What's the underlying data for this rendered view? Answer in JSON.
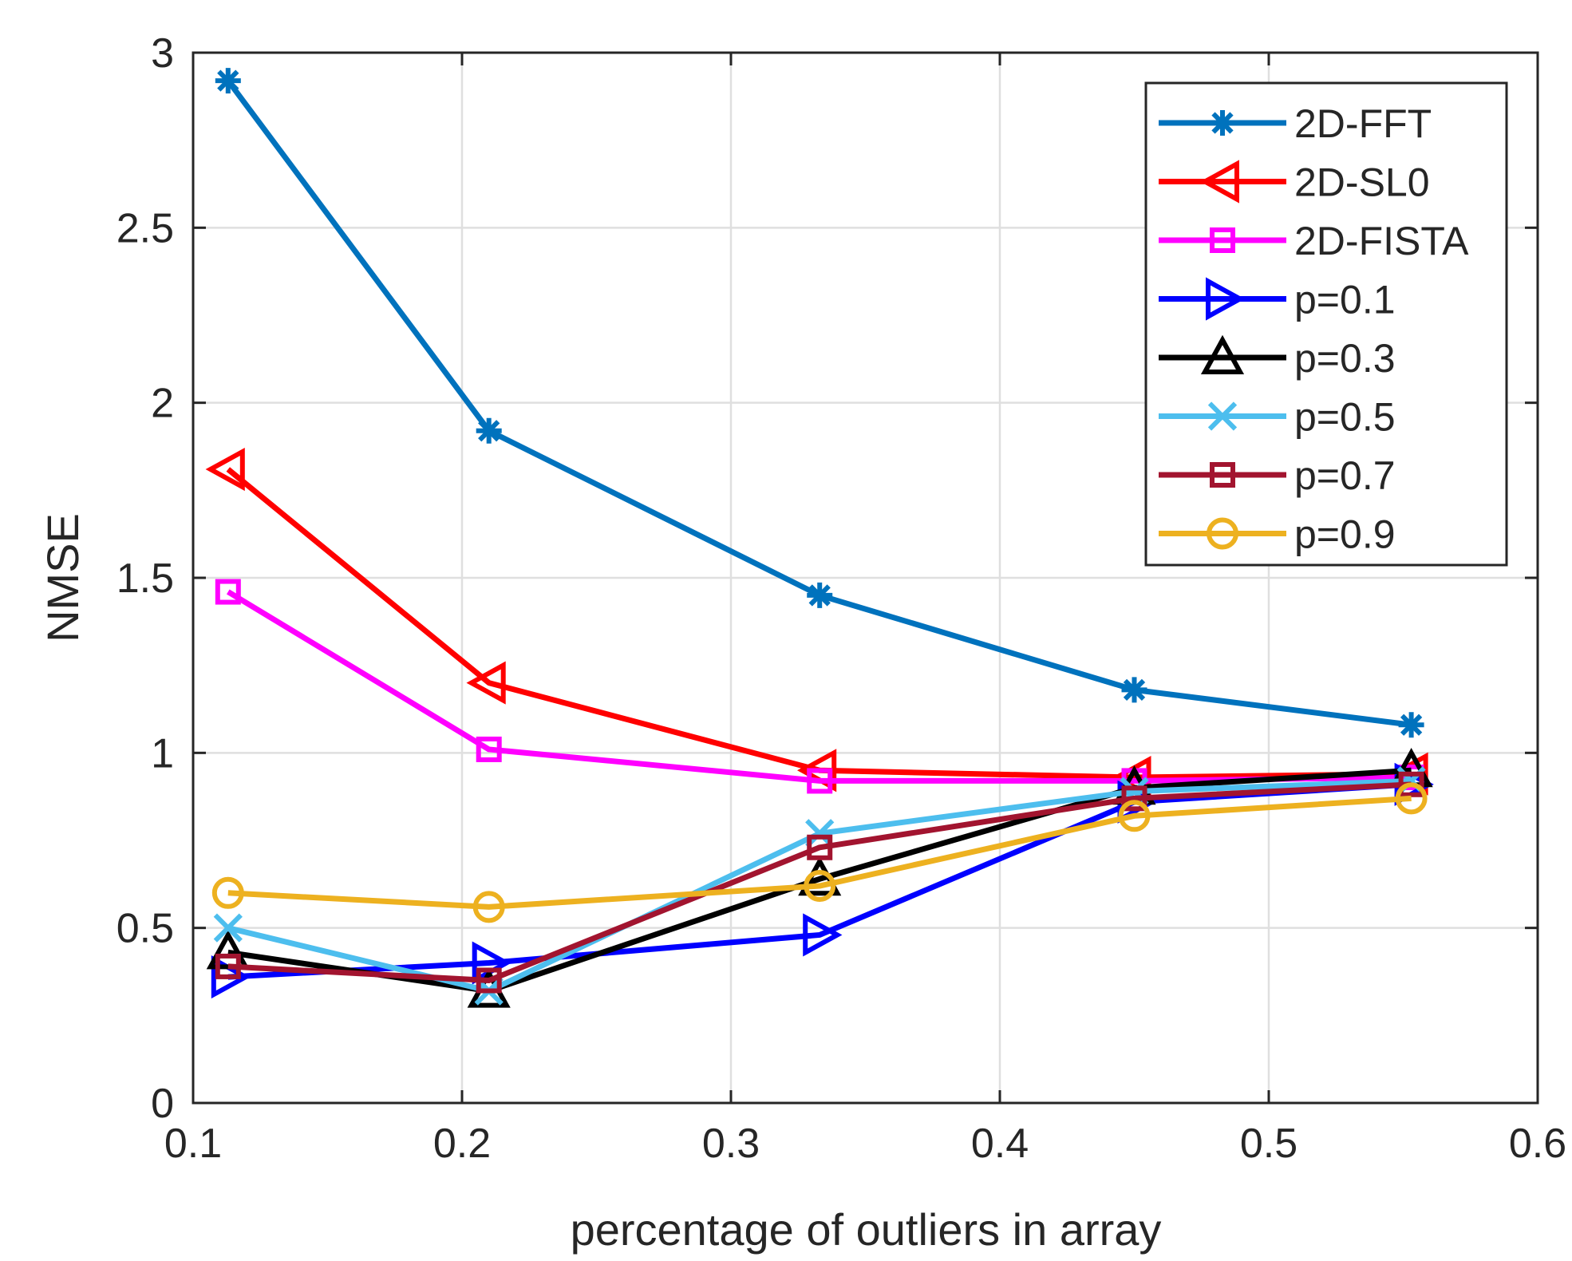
{
  "chart_data": {
    "type": "line",
    "title": "",
    "xlabel": "percentage of outliers in array",
    "ylabel": "NMSE",
    "xlim": [
      0.1,
      0.6
    ],
    "ylim": [
      0,
      3
    ],
    "xticks": [
      0.1,
      0.2,
      0.3,
      0.4,
      0.5,
      0.6
    ],
    "xtick_labels": [
      "0.1",
      "0.2",
      "0.3",
      "0.4",
      "0.5",
      "0.6"
    ],
    "yticks": [
      0,
      0.5,
      1,
      1.5,
      2,
      2.5,
      3
    ],
    "ytick_labels": [
      "0",
      "0.5",
      "1",
      "1.5",
      "2",
      "2.5",
      "3"
    ],
    "grid": true,
    "legend_position": "top-right",
    "x": [
      0.113,
      0.21,
      0.333,
      0.45,
      0.553
    ],
    "series": [
      {
        "name": "2D-FFT",
        "color": "#0072BD",
        "marker": "asterisk",
        "values": [
          2.92,
          1.92,
          1.45,
          1.18,
          1.08
        ]
      },
      {
        "name": "2D-SL0",
        "color": "#FF0000",
        "marker": "triangle-left",
        "values": [
          1.81,
          1.2,
          0.95,
          0.93,
          0.94
        ]
      },
      {
        "name": "2D-FISTA",
        "color": "#FF00FF",
        "marker": "square",
        "values": [
          1.46,
          1.01,
          0.92,
          0.92,
          0.93
        ]
      },
      {
        "name": "p=0.1",
        "color": "#0000FF",
        "marker": "triangle-right",
        "values": [
          0.36,
          0.4,
          0.48,
          0.86,
          0.91
        ]
      },
      {
        "name": "p=0.3",
        "color": "#000000",
        "marker": "triangle-up",
        "values": [
          0.43,
          0.32,
          0.64,
          0.9,
          0.95
        ]
      },
      {
        "name": "p=0.5",
        "color": "#4DBEEE",
        "marker": "x",
        "values": [
          0.5,
          0.32,
          0.77,
          0.89,
          0.92
        ]
      },
      {
        "name": "p=0.7",
        "color": "#A2142F",
        "marker": "square",
        "values": [
          0.39,
          0.35,
          0.73,
          0.87,
          0.91
        ]
      },
      {
        "name": "p=0.9",
        "color": "#EDB120",
        "marker": "circle",
        "values": [
          0.6,
          0.56,
          0.62,
          0.82,
          0.87
        ]
      }
    ]
  }
}
